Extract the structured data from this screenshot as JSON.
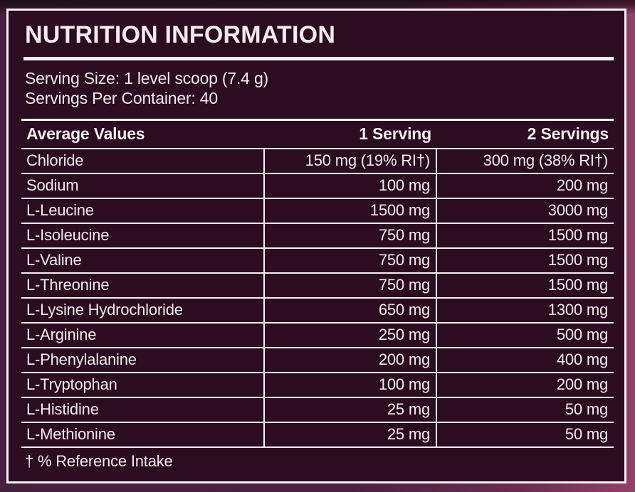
{
  "panel": {
    "title": "NUTRITION INFORMATION",
    "serving_size": "Serving Size: 1 level scoop (7.4 g)",
    "servings_per_container": "Servings Per Container: 40",
    "footnote": "† % Reference Intake"
  },
  "table": {
    "headers": [
      "Average Values",
      "1 Serving",
      "2 Servings"
    ],
    "rows": [
      {
        "name": "Chloride",
        "serving1": "150 mg (19% RI†)",
        "serving2": "300 mg (38% RI†)"
      },
      {
        "name": "Sodium",
        "serving1": "100 mg",
        "serving2": "200 mg"
      },
      {
        "name": "L-Leucine",
        "serving1": "1500 mg",
        "serving2": "3000 mg"
      },
      {
        "name": "L-Isoleucine",
        "serving1": "750 mg",
        "serving2": "1500 mg"
      },
      {
        "name": "L-Valine",
        "serving1": "750 mg",
        "serving2": "1500 mg"
      },
      {
        "name": "L-Threonine",
        "serving1": "750 mg",
        "serving2": "1500 mg"
      },
      {
        "name": "L-Lysine Hydrochloride",
        "serving1": "650 mg",
        "serving2": "1300 mg"
      },
      {
        "name": "L-Arginine",
        "serving1": "250 mg",
        "serving2": "500 mg"
      },
      {
        "name": "L-Phenylalanine",
        "serving1": "200 mg",
        "serving2": "400 mg"
      },
      {
        "name": "L-Tryptophan",
        "serving1": "100 mg",
        "serving2": "200 mg"
      },
      {
        "name": "L-Histidine",
        "serving1": "25 mg",
        "serving2": "50 mg"
      },
      {
        "name": "L-Methionine",
        "serving1": "25 mg",
        "serving2": "50 mg"
      }
    ]
  },
  "colors": {
    "panel_background": "#2b0c20",
    "border_and_text": "#f6f0f4",
    "outer_left": "#45203c",
    "outer_right": "#93406a",
    "outer_top_shade": "#12040e"
  }
}
